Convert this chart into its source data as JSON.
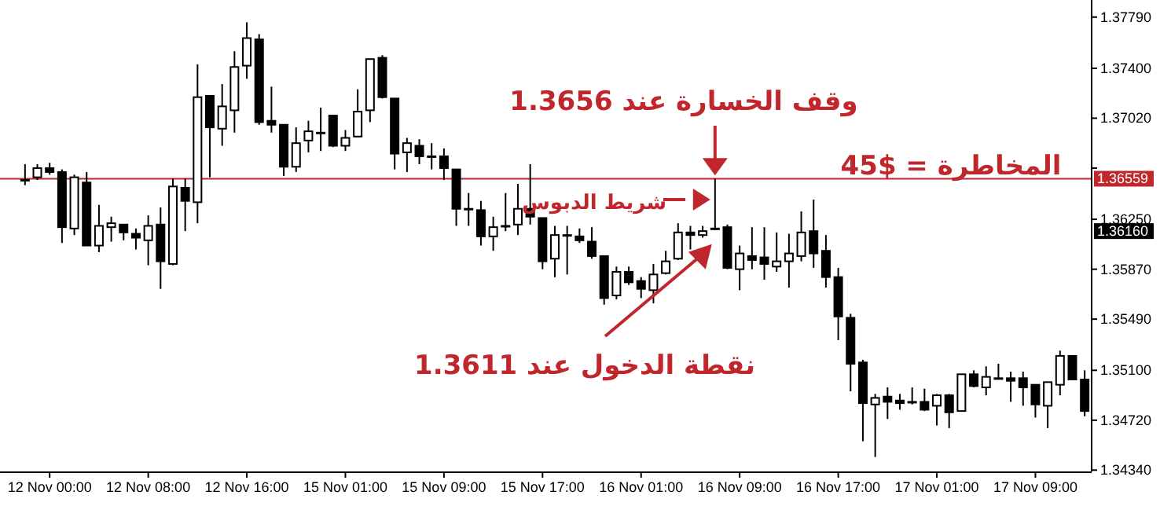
{
  "chart_data": {
    "type": "candlestick",
    "categories": [
      null,
      null,
      "12 Nov 00:00",
      null,
      null,
      null,
      null,
      null,
      null,
      null,
      "12 Nov 08:00",
      null,
      null,
      null,
      null,
      null,
      null,
      null,
      "12 Nov 16:00",
      null,
      null,
      null,
      null,
      null,
      null,
      null,
      "15 Nov 01:00",
      null,
      null,
      null,
      null,
      null,
      null,
      null,
      "15 Nov 09:00",
      null,
      null,
      null,
      null,
      null,
      null,
      null,
      "15 Nov 17:00",
      null,
      null,
      null,
      null,
      null,
      null,
      null,
      "16 Nov 01:00",
      null,
      null,
      null,
      null,
      null,
      null,
      null,
      "16 Nov 09:00",
      null,
      null,
      null,
      null,
      null,
      null,
      null,
      "16 Nov 17:00",
      null,
      null,
      null,
      null,
      null,
      null,
      null,
      "17 Nov 01:00",
      null,
      null,
      null,
      null,
      null,
      null,
      null,
      "17 Nov 09:00",
      null,
      null,
      null,
      null
    ],
    "ohlc": [
      [
        1.3655,
        1.3667,
        1.3651,
        1.3655
      ],
      [
        1.3657,
        1.3667,
        1.3655,
        1.3664
      ],
      [
        1.3664,
        1.3668,
        1.3659,
        1.3661
      ],
      [
        1.3661,
        1.3663,
        1.3607,
        1.3619
      ],
      [
        1.3618,
        1.3659,
        1.3613,
        1.3657
      ],
      [
        1.3653,
        1.3661,
        1.3605,
        1.3605
      ],
      [
        1.3605,
        1.3636,
        1.36,
        1.362
      ],
      [
        1.3619,
        1.3627,
        1.3608,
        1.3622
      ],
      [
        1.3621,
        1.3621,
        1.3609,
        1.3615
      ],
      [
        1.3614,
        1.3618,
        1.3602,
        1.3611
      ],
      [
        1.3609,
        1.3628,
        1.359,
        1.362
      ],
      [
        1.3621,
        1.3634,
        1.3572,
        1.3593
      ],
      [
        1.3591,
        1.3656,
        1.359,
        1.365
      ],
      [
        1.3649,
        1.3656,
        1.3616,
        1.3639
      ],
      [
        1.3638,
        1.3743,
        1.3622,
        1.3718
      ],
      [
        1.3719,
        1.3719,
        1.3657,
        1.3695
      ],
      [
        1.3694,
        1.3728,
        1.3681,
        1.3711
      ],
      [
        1.3708,
        1.3753,
        1.3691,
        1.3741
      ],
      [
        1.3742,
        1.3775,
        1.3732,
        1.3763
      ],
      [
        1.3762,
        1.3766,
        1.3697,
        1.3699
      ],
      [
        1.37,
        1.3726,
        1.3691,
        1.3697
      ],
      [
        1.3697,
        1.3697,
        1.3658,
        1.3665
      ],
      [
        1.3665,
        1.3695,
        1.3661,
        1.3683
      ],
      [
        1.3685,
        1.37,
        1.3676,
        1.3692
      ],
      [
        1.3691,
        1.371,
        1.3677,
        1.3691
      ],
      [
        1.3704,
        1.3704,
        1.368,
        1.3681
      ],
      [
        1.3681,
        1.3693,
        1.3677,
        1.3687
      ],
      [
        1.3688,
        1.3724,
        1.3688,
        1.3707
      ],
      [
        1.3708,
        1.3747,
        1.3699,
        1.3747
      ],
      [
        1.3748,
        1.375,
        1.3717,
        1.3718
      ],
      [
        1.3717,
        1.3717,
        1.3663,
        1.3675
      ],
      [
        1.3676,
        1.3687,
        1.3661,
        1.3683
      ],
      [
        1.3681,
        1.3686,
        1.3667,
        1.3673
      ],
      [
        1.3673,
        1.3683,
        1.3663,
        1.3673
      ],
      [
        1.3673,
        1.3679,
        1.3655,
        1.3664
      ],
      [
        1.3663,
        1.3663,
        1.362,
        1.3633
      ],
      [
        1.3633,
        1.3645,
        1.362,
        1.3633
      ],
      [
        1.3632,
        1.3639,
        1.3605,
        1.3612
      ],
      [
        1.3612,
        1.3627,
        1.3601,
        1.3619
      ],
      [
        1.362,
        1.3645,
        1.3616,
        1.362
      ],
      [
        1.3621,
        1.3652,
        1.3613,
        1.3633
      ],
      [
        1.3633,
        1.3667,
        1.3621,
        1.3627
      ],
      [
        1.3626,
        1.3626,
        1.3587,
        1.3593
      ],
      [
        1.3595,
        1.362,
        1.3581,
        1.3613
      ],
      [
        1.3613,
        1.362,
        1.3583,
        1.3613
      ],
      [
        1.3612,
        1.3618,
        1.3607,
        1.3609
      ],
      [
        1.3608,
        1.3619,
        1.3595,
        1.3597
      ],
      [
        1.3597,
        1.3597,
        1.356,
        1.3565
      ],
      [
        1.3567,
        1.3589,
        1.3564,
        1.3585
      ],
      [
        1.3585,
        1.3589,
        1.3575,
        1.3577
      ],
      [
        1.3578,
        1.3581,
        1.3565,
        1.3572
      ],
      [
        1.3571,
        1.3591,
        1.3561,
        1.3583
      ],
      [
        1.3584,
        1.3601,
        1.3583,
        1.3593
      ],
      [
        1.3595,
        1.3622,
        1.3594,
        1.3615
      ],
      [
        1.3615,
        1.362,
        1.3602,
        1.3613
      ],
      [
        1.3613,
        1.362,
        1.3611,
        1.3616
      ],
      [
        1.3618,
        1.3656,
        1.3617,
        1.3618
      ],
      [
        1.3619,
        1.3621,
        1.3587,
        1.3588
      ],
      [
        1.3587,
        1.3605,
        1.3571,
        1.3599
      ],
      [
        1.3597,
        1.3619,
        1.3587,
        1.3594
      ],
      [
        1.3596,
        1.3619,
        1.3579,
        1.3591
      ],
      [
        1.3589,
        1.3615,
        1.3585,
        1.3593
      ],
      [
        1.3593,
        1.3614,
        1.3573,
        1.3599
      ],
      [
        1.3597,
        1.3631,
        1.3593,
        1.3615
      ],
      [
        1.3616,
        1.364,
        1.3588,
        1.3599
      ],
      [
        1.3601,
        1.3613,
        1.3573,
        1.3581
      ],
      [
        1.3581,
        1.3588,
        1.3533,
        1.3551
      ],
      [
        1.355,
        1.3553,
        1.3494,
        1.3515
      ],
      [
        1.3516,
        1.3518,
        1.3456,
        1.3485
      ],
      [
        1.3484,
        1.3492,
        1.3444,
        1.3489
      ],
      [
        1.349,
        1.3497,
        1.3473,
        1.3486
      ],
      [
        1.3487,
        1.3492,
        1.348,
        1.3485
      ],
      [
        1.3486,
        1.3497,
        1.3484,
        1.3486
      ],
      [
        1.3486,
        1.3496,
        1.3479,
        1.348
      ],
      [
        1.3483,
        1.3492,
        1.3468,
        1.3491
      ],
      [
        1.3491,
        1.3492,
        1.3466,
        1.3478
      ],
      [
        1.3479,
        1.3507,
        1.3479,
        1.3507
      ],
      [
        1.3507,
        1.351,
        1.3497,
        1.3498
      ],
      [
        1.3497,
        1.3513,
        1.3491,
        1.3505
      ],
      [
        1.3504,
        1.3515,
        1.3504,
        1.3504
      ],
      [
        1.3504,
        1.3509,
        1.3486,
        1.3502
      ],
      [
        1.3504,
        1.3509,
        1.3483,
        1.3497
      ],
      [
        1.3499,
        1.3499,
        1.3474,
        1.3484
      ],
      [
        1.3483,
        1.3501,
        1.3466,
        1.3501
      ],
      [
        1.3499,
        1.3525,
        1.3491,
        1.3521
      ],
      [
        1.3521,
        1.3521,
        1.3503,
        1.3503
      ],
      [
        1.3503,
        1.351,
        1.3475,
        1.3479
      ]
    ],
    "ylim": [
      1.3433,
      1.3792
    ],
    "yticks": [
      {
        "value": 1.3779,
        "label": "1.37790"
      },
      {
        "value": 1.374,
        "label": "1.37400"
      },
      {
        "value": 1.3702,
        "label": "1.37020"
      },
      {
        "value": 1.3664,
        "label": null
      },
      {
        "value": 1.3625,
        "label": "1.36250"
      },
      {
        "value": 1.3587,
        "label": "1.35870"
      },
      {
        "value": 1.3549,
        "label": "1.35490"
      },
      {
        "value": 1.351,
        "label": "1.35100"
      },
      {
        "value": 1.3472,
        "label": "1.34720"
      },
      {
        "value": 1.3434,
        "label": "1.34340"
      }
    ],
    "ref_lines": [
      {
        "axis": "y",
        "value": 1.36559,
        "label": "1.36559",
        "color": "#c0272d"
      }
    ],
    "annotations": [
      "وقف الخسارة عند 1.3656",
      "المخاطرة = $45",
      "شريط الدبوس",
      "نقطة الدخول عند 1.3611",
      "1.36160"
    ],
    "grid": false
  }
}
